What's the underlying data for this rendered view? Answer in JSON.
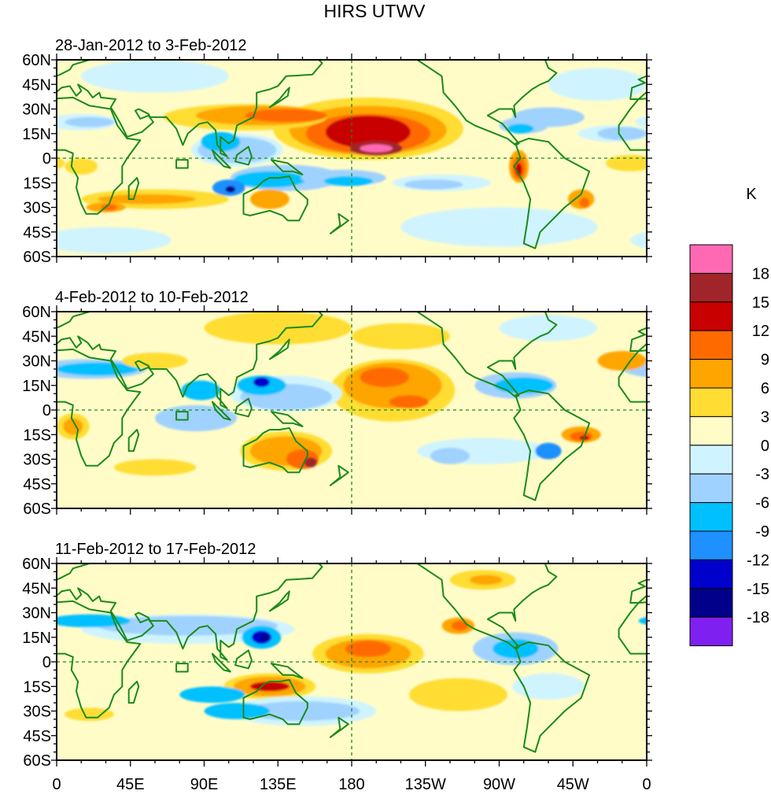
{
  "title": "HIRS UTWV",
  "panels": [
    {
      "subtitle": "28-Jan-2012 to 3-Feb-2012"
    },
    {
      "subtitle": "4-Feb-2012 to 10-Feb-2012"
    },
    {
      "subtitle": "11-Feb-2012 to 17-Feb-2012"
    }
  ],
  "lat_labels": [
    "60N",
    "45N",
    "30N",
    "15N",
    "0",
    "15S",
    "30S",
    "45S",
    "60S"
  ],
  "lon_labels": [
    "0",
    "45E",
    "90E",
    "135E",
    "180",
    "135W",
    "90W",
    "45W",
    "0"
  ],
  "colorbar": {
    "unit": "K",
    "labels": [
      "18",
      "15",
      "12",
      "9",
      "6",
      "3",
      "0",
      "-3",
      "-6",
      "-9",
      "-12",
      "-15",
      "-18"
    ],
    "colors": [
      "#ff69b4",
      "#a0252a",
      "#c80000",
      "#ff6a00",
      "#ffa500",
      "#ffdd33",
      "#fffcc8",
      "#cff4ff",
      "#a0d2ff",
      "#00c0ff",
      "#1e90ff",
      "#0000cd",
      "#00008b",
      "#8020f0"
    ]
  },
  "coastline_color": "#1a8a1a"
}
